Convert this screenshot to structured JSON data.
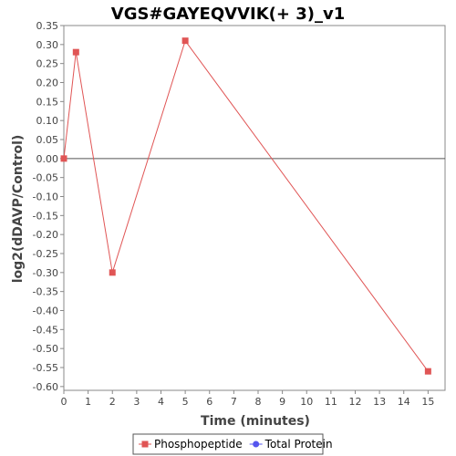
{
  "chart_data": {
    "type": "line",
    "title": "VGS#GAYEQVVIK(+ 3)_v1",
    "xlabel": "Time (minutes)",
    "ylabel": "log2(dDAVP/Control)",
    "xlim": [
      0,
      15.7
    ],
    "ylim": [
      -0.61,
      0.35
    ],
    "x_ticks": [
      0,
      1,
      2,
      3,
      4,
      5,
      6,
      7,
      8,
      9,
      10,
      11,
      12,
      13,
      14,
      15
    ],
    "y_ticks": [
      0.35,
      0.3,
      0.25,
      0.2,
      0.15,
      0.1,
      0.05,
      0.0,
      -0.05,
      -0.1,
      -0.15,
      -0.2,
      -0.25,
      -0.3,
      -0.35,
      -0.4,
      -0.45,
      -0.5,
      -0.55,
      -0.6
    ],
    "grid": false,
    "zero_line": true,
    "legend_position": "bottom",
    "series": [
      {
        "name": "Phosphopeptide",
        "color": "#e05555",
        "marker": "square",
        "x": [
          0,
          0.5,
          2,
          5,
          15
        ],
        "y": [
          0.0,
          0.28,
          -0.3,
          0.31,
          -0.56
        ]
      },
      {
        "name": "Total Protein",
        "color": "#5555ee",
        "marker": "circle",
        "x": [],
        "y": []
      }
    ]
  }
}
